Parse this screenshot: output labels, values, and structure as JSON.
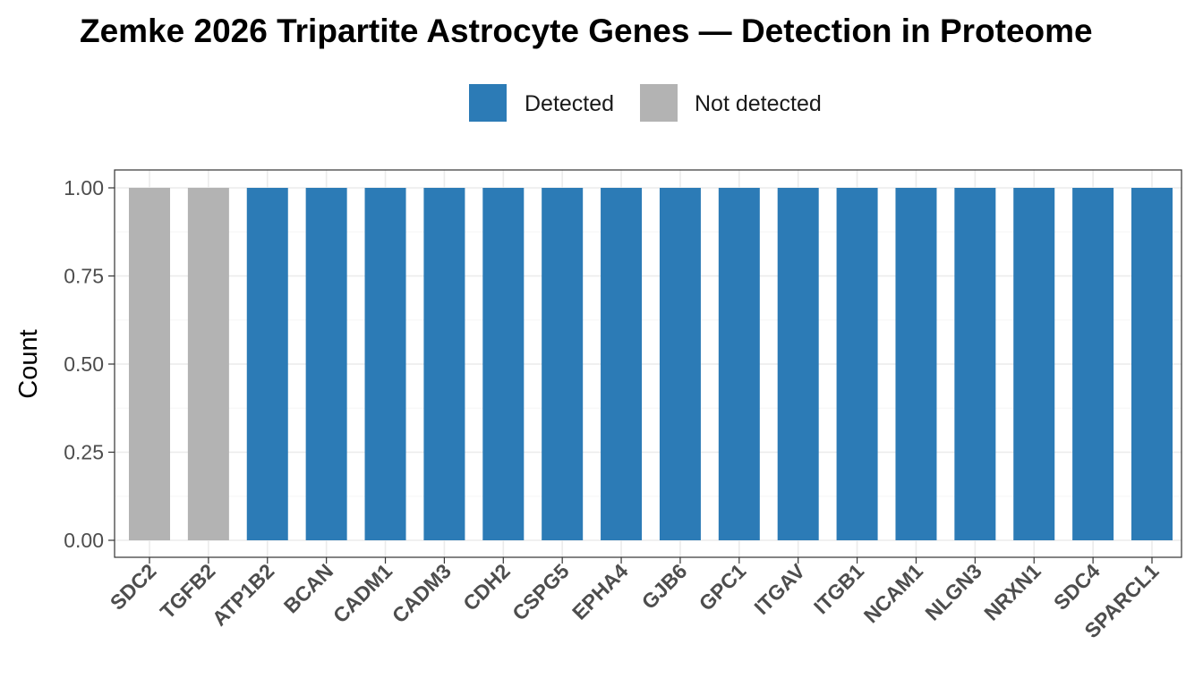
{
  "colors": {
    "detected": "#2c7bb6",
    "not_detected": "#b3b3b3",
    "grid_major": "#ebebeb",
    "grid_minor": "#f5f5f5",
    "panel_border": "#333333"
  },
  "legend": {
    "items": [
      {
        "label": "Detected",
        "color": "#2c7bb6"
      },
      {
        "label": "Not detected",
        "color": "#b3b3b3"
      }
    ]
  },
  "chart_data": {
    "type": "bar",
    "title": "Zemke 2026 Tripartite Astrocyte Genes — Detection in Proteome",
    "xlabel": "",
    "ylabel": "Count",
    "ylim": [
      0,
      1.05
    ],
    "yticks": [
      "0.00",
      "0.25",
      "0.50",
      "0.75",
      "1.00"
    ],
    "grid": true,
    "legend_position": "top",
    "categories": [
      "SDC2",
      "TGFB2",
      "ATP1B2",
      "BCAN",
      "CADM1",
      "CADM3",
      "CDH2",
      "CSPG5",
      "EPHA4",
      "GJB6",
      "GPC1",
      "ITGAV",
      "ITGB1",
      "NCAM1",
      "NLGN3",
      "NRXN1",
      "SDC4",
      "SPARCL1"
    ],
    "values": [
      1,
      1,
      1,
      1,
      1,
      1,
      1,
      1,
      1,
      1,
      1,
      1,
      1,
      1,
      1,
      1,
      1,
      1
    ],
    "status": [
      "Not detected",
      "Not detected",
      "Detected",
      "Detected",
      "Detected",
      "Detected",
      "Detected",
      "Detected",
      "Detected",
      "Detected",
      "Detected",
      "Detected",
      "Detected",
      "Detected",
      "Detected",
      "Detected",
      "Detected",
      "Detected"
    ]
  }
}
